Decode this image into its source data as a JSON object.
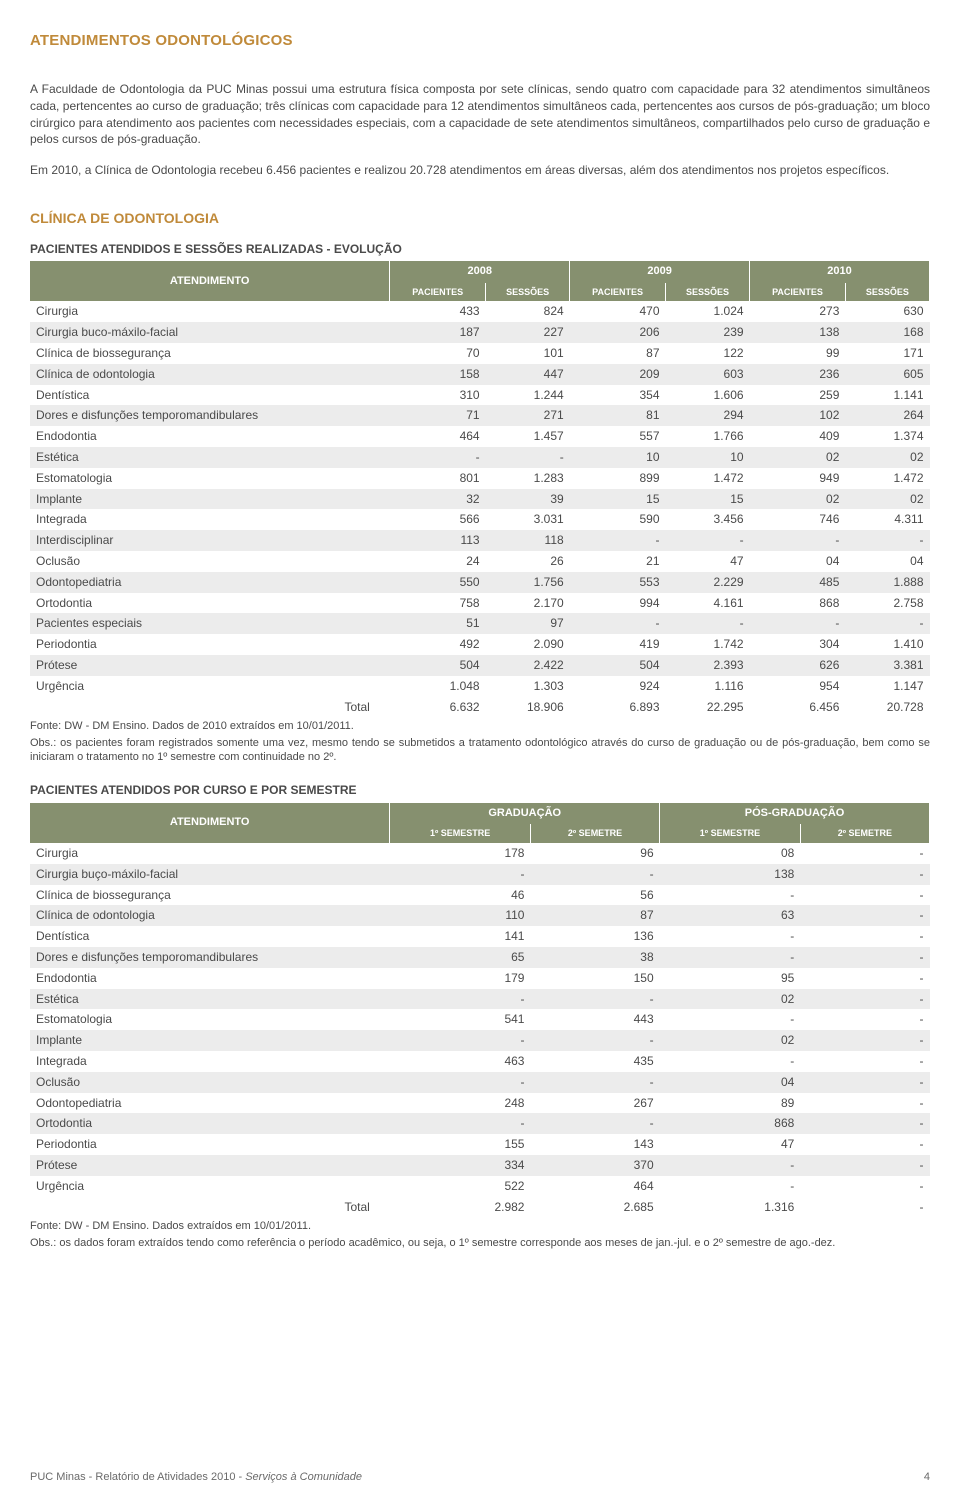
{
  "colors": {
    "title": "#c08a3a",
    "header_bg": "#86906f",
    "header_fg": "#ffffff",
    "row_even": "#ececec",
    "row_odd": "#ffffff",
    "text": "#4a4a4a"
  },
  "page_title": "ATENDIMENTOS ODONTOLÓGICOS",
  "para1": "A Faculdade de Odontologia da PUC Minas possui uma estrutura física composta por sete clínicas, sendo quatro com capacidade para 32 atendimentos simultâneos cada, pertencentes ao curso de graduação; três clínicas com capacidade para 12 atendimentos simultâneos cada, pertencentes aos cursos de pós-graduação; um bloco cirúrgico para atendimento aos pacientes com necessidades especiais, com a capacidade de sete atendimentos simultâneos, compartilhados pelo curso de graduação e pelos cursos de pós-graduação.",
  "para2": "Em 2010, a Clínica de Odontologia recebeu 6.456 pacientes e realizou 20.728 atendimentos em áreas diversas, além dos atendimentos nos projetos específicos.",
  "section_title": "CLÍNICA DE ODONTOLOGIA",
  "table1": {
    "title": "PACIENTES ATENDIDOS E SESSÕES REALIZADAS - EVOLUÇÃO",
    "header_rowlabel": "ATENDIMENTO",
    "years": [
      "2008",
      "2009",
      "2010"
    ],
    "subcols": [
      "PACIENTES",
      "SESSÕES",
      "PACIENTES",
      "SESSÕES",
      "PACIENTES",
      "SESSÕES"
    ],
    "rows": [
      {
        "label": "Cirurgia",
        "vals": [
          "433",
          "824",
          "470",
          "1.024",
          "273",
          "630"
        ]
      },
      {
        "label": "Cirurgia buco-máxilo-facial",
        "vals": [
          "187",
          "227",
          "206",
          "239",
          "138",
          "168"
        ]
      },
      {
        "label": "Clínica de biossegurança",
        "vals": [
          "70",
          "101",
          "87",
          "122",
          "99",
          "171"
        ]
      },
      {
        "label": "Clínica de odontologia",
        "vals": [
          "158",
          "447",
          "209",
          "603",
          "236",
          "605"
        ]
      },
      {
        "label": "Dentística",
        "vals": [
          "310",
          "1.244",
          "354",
          "1.606",
          "259",
          "1.141"
        ]
      },
      {
        "label": "Dores e disfunções temporomandibulares",
        "vals": [
          "71",
          "271",
          "81",
          "294",
          "102",
          "264"
        ]
      },
      {
        "label": "Endodontia",
        "vals": [
          "464",
          "1.457",
          "557",
          "1.766",
          "409",
          "1.374"
        ]
      },
      {
        "label": "Estética",
        "vals": [
          "-",
          "-",
          "10",
          "10",
          "02",
          "02"
        ]
      },
      {
        "label": "Estomatologia",
        "vals": [
          "801",
          "1.283",
          "899",
          "1.472",
          "949",
          "1.472"
        ]
      },
      {
        "label": "Implante",
        "vals": [
          "32",
          "39",
          "15",
          "15",
          "02",
          "02"
        ]
      },
      {
        "label": "Integrada",
        "vals": [
          "566",
          "3.031",
          "590",
          "3.456",
          "746",
          "4.311"
        ]
      },
      {
        "label": "Interdisciplinar",
        "vals": [
          "113",
          "118",
          "-",
          "-",
          "-",
          "-"
        ]
      },
      {
        "label": "Oclusão",
        "vals": [
          "24",
          "26",
          "21",
          "47",
          "04",
          "04"
        ]
      },
      {
        "label": "Odontopediatria",
        "vals": [
          "550",
          "1.756",
          "553",
          "2.229",
          "485",
          "1.888"
        ]
      },
      {
        "label": "Ortodontia",
        "vals": [
          "758",
          "2.170",
          "994",
          "4.161",
          "868",
          "2.758"
        ]
      },
      {
        "label": "Pacientes especiais",
        "vals": [
          "51",
          "97",
          "-",
          "-",
          "-",
          "-"
        ]
      },
      {
        "label": "Periodontia",
        "vals": [
          "492",
          "2.090",
          "419",
          "1.742",
          "304",
          "1.410"
        ]
      },
      {
        "label": "Prótese",
        "vals": [
          "504",
          "2.422",
          "504",
          "2.393",
          "626",
          "3.381"
        ]
      },
      {
        "label": "Urgência",
        "vals": [
          "1.048",
          "1.303",
          "924",
          "1.116",
          "954",
          "1.147"
        ]
      }
    ],
    "total_label": "Total",
    "total_vals": [
      "6.632",
      "18.906",
      "6.893",
      "22.295",
      "6.456",
      "20.728"
    ],
    "footnote1": "Fonte: DW - DM Ensino. Dados de 2010 extraídos em 10/01/2011.",
    "footnote2": "Obs.: os pacientes foram registrados somente uma vez, mesmo tendo se submetidos a tratamento odontológico através do curso de graduação ou de pós-graduação, bem como se iniciaram o tratamento no 1º semestre com continuidade no 2º."
  },
  "table2": {
    "title": "PACIENTES ATENDIDOS POR CURSO E POR SEMESTRE",
    "header_rowlabel": "ATENDIMENTO",
    "groups": [
      "GRADUAÇÃO",
      "PÓS-GRADUAÇÃO"
    ],
    "subcols": [
      "1º SEMESTRE",
      "2º SEMETRE",
      "1º SEMESTRE",
      "2º SEMETRE"
    ],
    "rows": [
      {
        "label": "Cirurgia",
        "vals": [
          "178",
          "96",
          "08",
          "-"
        ]
      },
      {
        "label": "Cirurgia buço-máxilo-facial",
        "vals": [
          "-",
          "-",
          "138",
          "-"
        ]
      },
      {
        "label": "Clínica de biossegurança",
        "vals": [
          "46",
          "56",
          "-",
          "-"
        ]
      },
      {
        "label": "Clínica de odontologia",
        "vals": [
          "110",
          "87",
          "63",
          "-"
        ]
      },
      {
        "label": "Dentística",
        "vals": [
          "141",
          "136",
          "-",
          "-"
        ]
      },
      {
        "label": "Dores e disfunções temporomandibulares",
        "vals": [
          "65",
          "38",
          "-",
          "-"
        ]
      },
      {
        "label": "Endodontia",
        "vals": [
          "179",
          "150",
          "95",
          "-"
        ]
      },
      {
        "label": "Estética",
        "vals": [
          "-",
          "-",
          "02",
          "-"
        ]
      },
      {
        "label": "Estomatologia",
        "vals": [
          "541",
          "443",
          "-",
          "-"
        ]
      },
      {
        "label": "Implante",
        "vals": [
          "-",
          "-",
          "02",
          "-"
        ]
      },
      {
        "label": "Integrada",
        "vals": [
          "463",
          "435",
          "-",
          "-"
        ]
      },
      {
        "label": "Oclusão",
        "vals": [
          "-",
          "-",
          "04",
          "-"
        ]
      },
      {
        "label": "Odontopediatria",
        "vals": [
          "248",
          "267",
          "89",
          "-"
        ]
      },
      {
        "label": "Ortodontia",
        "vals": [
          "-",
          "-",
          "868",
          "-"
        ]
      },
      {
        "label": "Periodontia",
        "vals": [
          "155",
          "143",
          "47",
          "-"
        ]
      },
      {
        "label": "Prótese",
        "vals": [
          "334",
          "370",
          "-",
          "-"
        ]
      },
      {
        "label": "Urgência",
        "vals": [
          "522",
          "464",
          "-",
          "-"
        ]
      }
    ],
    "total_label": "Total",
    "total_vals": [
      "2.982",
      "2.685",
      "1.316",
      "-"
    ],
    "footnote1": "Fonte: DW - DM Ensino. Dados extraídos em 10/01/2011.",
    "footnote2": "Obs.: os dados foram extraídos tendo como referência o período acadêmico, ou seja, o 1º semestre corresponde aos meses de jan.-jul. e o 2º semestre de ago.-dez."
  },
  "footer_left_a": "PUC Minas - Relatório de Atividades 2010 - ",
  "footer_left_b": "Serviços à Comunidade",
  "footer_page": "4"
}
